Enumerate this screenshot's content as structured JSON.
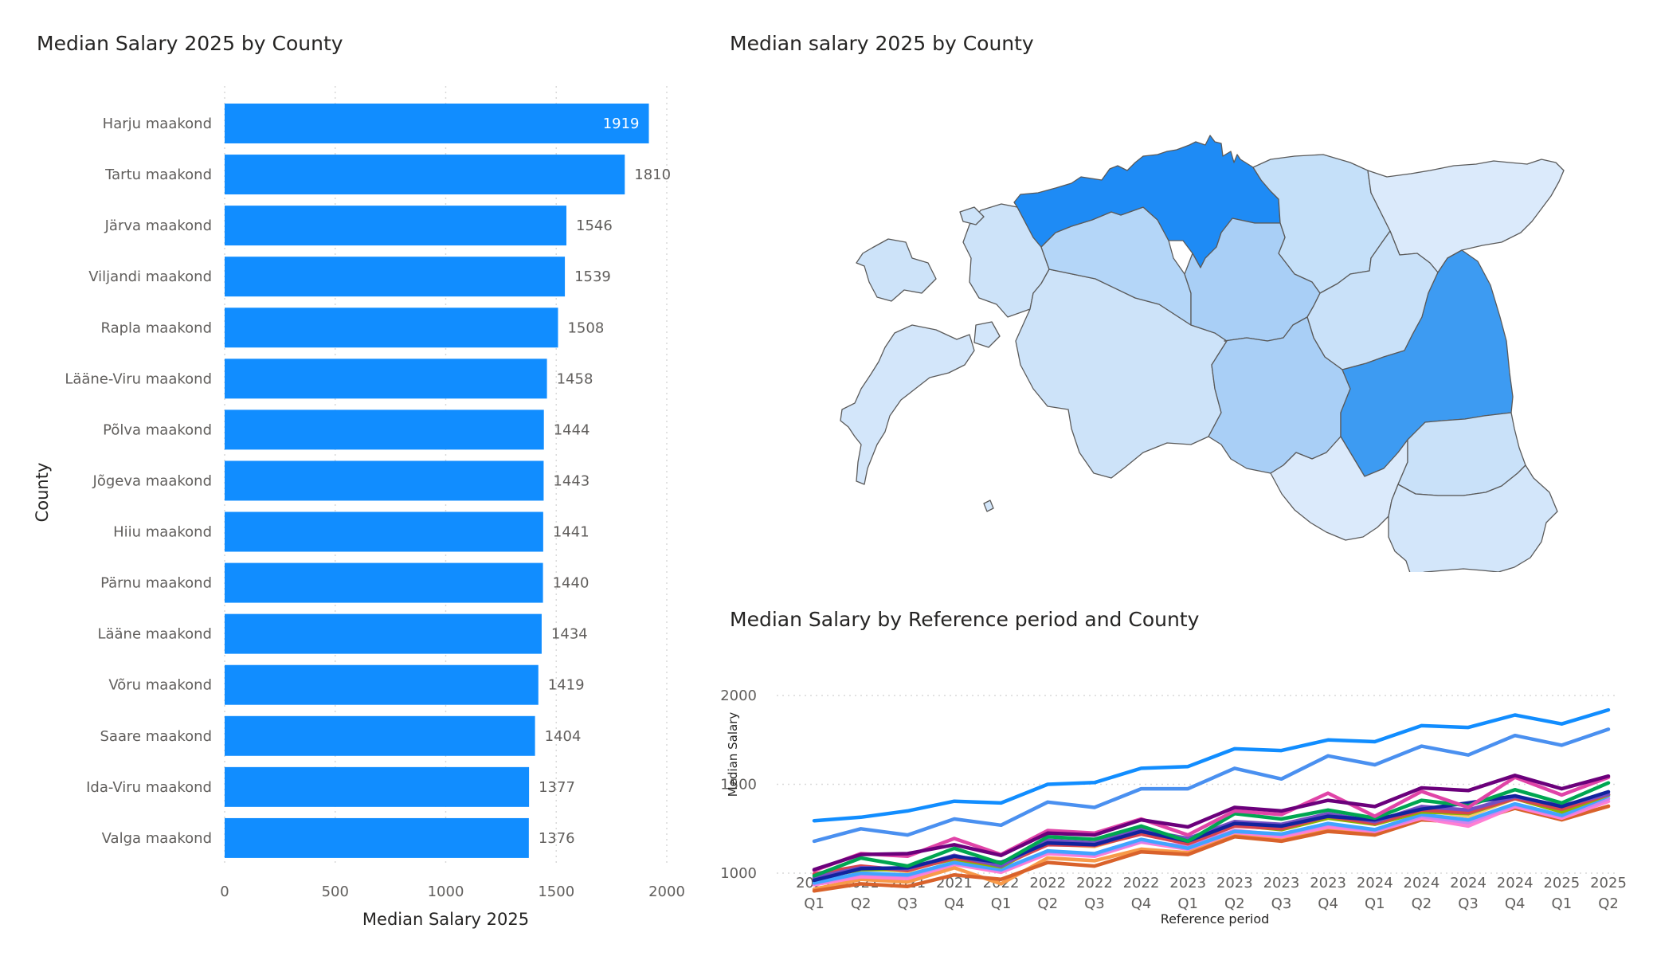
{
  "colors": {
    "bar": "#118DFF",
    "text_dark": "#252423",
    "text_gray": "#605E5C",
    "grid": "#D9D9D9"
  },
  "bar_visual": {
    "title": "Median Salary 2025 by County",
    "chart_data": {
      "type": "bar",
      "orientation": "horizontal",
      "title": "Median Salary 2025 by County",
      "xlabel": "Median Salary 2025",
      "ylabel": "County",
      "xlim": [
        0,
        2000
      ],
      "x_ticks": [
        "0",
        "500",
        "1000",
        "1500",
        "2000"
      ],
      "categories": [
        "Harju maakond",
        "Tartu maakond",
        "Järva maakond",
        "Viljandi maakond",
        "Rapla maakond",
        "Lääne-Viru maakond",
        "Põlva maakond",
        "Jõgeva maakond",
        "Hiiu maakond",
        "Pärnu maakond",
        "Lääne maakond",
        "Võru maakond",
        "Saare maakond",
        "Ida-Viru maakond",
        "Valga maakond"
      ],
      "values": [
        1919,
        1810,
        1546,
        1539,
        1508,
        1458,
        1444,
        1443,
        1441,
        1440,
        1434,
        1419,
        1404,
        1377,
        1376
      ],
      "data_labels": [
        "1919",
        "1810",
        "1546",
        "1539",
        "1508",
        "1458",
        "1444",
        "1443",
        "1441",
        "1440",
        "1434",
        "1419",
        "1404",
        "1377",
        "1376"
      ],
      "grid": true
    }
  },
  "map_visual": {
    "title": "Median salary 2025 by County",
    "regions": [
      {
        "name": "Harju",
        "shade": "#1E8BF5"
      },
      {
        "name": "Tartu",
        "shade": "#3D9BF2"
      },
      {
        "name": "Järva",
        "shade": "#A9CFF6"
      },
      {
        "name": "Viljandi",
        "shade": "#A9CFF6"
      },
      {
        "name": "Rapla",
        "shade": "#B4D6F8"
      },
      {
        "name": "Lääne-Viru",
        "shade": "#C5E0F9"
      },
      {
        "name": "Põlva",
        "shade": "#C9E1F9"
      },
      {
        "name": "Jõgeva",
        "shade": "#C9E1F9"
      },
      {
        "name": "Hiiu",
        "shade": "#CDE3F9"
      },
      {
        "name": "Pärnu",
        "shade": "#CDE3F9"
      },
      {
        "name": "Lääne",
        "shade": "#CDE3F9"
      },
      {
        "name": "Võru",
        "shade": "#D3E6FA"
      },
      {
        "name": "Saare",
        "shade": "#D3E6FA"
      },
      {
        "name": "Ida-Viru",
        "shade": "#DBEAFB"
      },
      {
        "name": "Valga",
        "shade": "#DBEAFB"
      }
    ]
  },
  "line_visual": {
    "title": "Median Salary by Reference period and County",
    "chart_data": {
      "type": "line",
      "title": "Median Salary by Reference period and County",
      "xlabel": "Reference period",
      "ylabel": "Median Salary",
      "ylim": [
        800,
        2000
      ],
      "y_ticks": [
        "1000",
        "1500",
        "2000"
      ],
      "x": [
        {
          "year": "2021",
          "q": "Q1"
        },
        {
          "year": "2021",
          "q": "Q2"
        },
        {
          "year": "2021",
          "q": "Q3"
        },
        {
          "year": "2021",
          "q": "Q4"
        },
        {
          "year": "2022",
          "q": "Q1"
        },
        {
          "year": "2022",
          "q": "Q2"
        },
        {
          "year": "2022",
          "q": "Q3"
        },
        {
          "year": "2022",
          "q": "Q4"
        },
        {
          "year": "2023",
          "q": "Q1"
        },
        {
          "year": "2023",
          "q": "Q2"
        },
        {
          "year": "2023",
          "q": "Q3"
        },
        {
          "year": "2023",
          "q": "Q4"
        },
        {
          "year": "2024",
          "q": "Q1"
        },
        {
          "year": "2024",
          "q": "Q2"
        },
        {
          "year": "2024",
          "q": "Q3"
        },
        {
          "year": "2024",
          "q": "Q4"
        },
        {
          "year": "2025",
          "q": "Q1"
        },
        {
          "year": "2025",
          "q": "Q2"
        }
      ],
      "grid": true,
      "series": [
        {
          "color": "#118DFF",
          "values": [
            1295,
            1315,
            1350,
            1405,
            1395,
            1500,
            1510,
            1590,
            1600,
            1700,
            1690,
            1750,
            1740,
            1830,
            1820,
            1890,
            1840,
            1919
          ]
        },
        {
          "color": "#4A90F0",
          "values": [
            1180,
            1250,
            1215,
            1305,
            1270,
            1400,
            1370,
            1475,
            1475,
            1590,
            1530,
            1660,
            1610,
            1715,
            1665,
            1775,
            1720,
            1810
          ]
        },
        {
          "color": "#6B007B",
          "values": [
            1020,
            1105,
            1110,
            1160,
            1100,
            1225,
            1215,
            1300,
            1260,
            1370,
            1350,
            1410,
            1375,
            1480,
            1465,
            1550,
            1475,
            1546
          ]
        },
        {
          "color": "#E044A7",
          "values": [
            1015,
            1110,
            1095,
            1195,
            1105,
            1240,
            1225,
            1305,
            1215,
            1350,
            1330,
            1450,
            1320,
            1460,
            1370,
            1540,
            1440,
            1539
          ]
        },
        {
          "color": "#00A651",
          "values": [
            985,
            1085,
            1040,
            1140,
            1055,
            1205,
            1190,
            1265,
            1180,
            1335,
            1305,
            1355,
            1310,
            1410,
            1380,
            1470,
            1395,
            1508
          ]
        },
        {
          "color": "#12239E",
          "values": [
            960,
            1025,
            1030,
            1095,
            1060,
            1170,
            1160,
            1235,
            1180,
            1280,
            1265,
            1320,
            1300,
            1360,
            1395,
            1435,
            1375,
            1458
          ]
        },
        {
          "color": "#744EC2",
          "values": [
            975,
            1030,
            1025,
            1100,
            1040,
            1185,
            1170,
            1245,
            1195,
            1290,
            1275,
            1335,
            1290,
            1375,
            1355,
            1430,
            1380,
            1444
          ]
        },
        {
          "color": "#D64550",
          "values": [
            995,
            1040,
            1015,
            1085,
            1045,
            1160,
            1155,
            1220,
            1165,
            1265,
            1250,
            1320,
            1280,
            1355,
            1340,
            1420,
            1360,
            1443
          ]
        },
        {
          "color": "#8CB400",
          "values": [
            970,
            1020,
            1020,
            1080,
            1035,
            1175,
            1165,
            1230,
            1170,
            1270,
            1245,
            1310,
            1275,
            1345,
            1335,
            1420,
            1345,
            1441
          ]
        },
        {
          "color": "#F5C869",
          "values": [
            965,
            1030,
            1010,
            1090,
            1040,
            1165,
            1150,
            1225,
            1170,
            1275,
            1250,
            1320,
            1275,
            1355,
            1320,
            1420,
            1355,
            1440
          ]
        },
        {
          "color": "#41A4FF",
          "values": [
            945,
            1000,
            990,
            1060,
            1020,
            1125,
            1110,
            1190,
            1140,
            1235,
            1220,
            1280,
            1245,
            1330,
            1300,
            1390,
            1325,
            1434
          ]
        },
        {
          "color": "#D082EF",
          "values": [
            940,
            995,
            985,
            1055,
            1015,
            1120,
            1105,
            1180,
            1150,
            1240,
            1215,
            1275,
            1240,
            1320,
            1285,
            1385,
            1320,
            1419
          ]
        },
        {
          "color": "#FF7FD3",
          "values": [
            935,
            980,
            970,
            1050,
            1005,
            1110,
            1095,
            1175,
            1135,
            1230,
            1205,
            1260,
            1235,
            1310,
            1265,
            1375,
            1310,
            1404
          ]
        },
        {
          "color": "#D9622B",
          "values": [
            900,
            940,
            925,
            990,
            965,
            1060,
            1040,
            1120,
            1105,
            1205,
            1180,
            1235,
            1215,
            1300,
            1285,
            1365,
            1300,
            1377
          ]
        },
        {
          "color": "#F89A4A",
          "values": [
            910,
            965,
            950,
            1030,
            940,
            1085,
            1070,
            1135,
            1115,
            1215,
            1190,
            1245,
            1220,
            1305,
            1290,
            1370,
            1305,
            1376
          ]
        }
      ]
    }
  }
}
